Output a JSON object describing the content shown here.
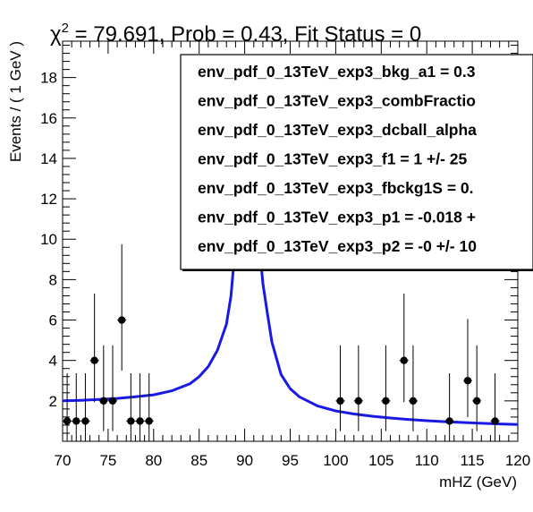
{
  "chart_data": {
    "type": "scatter",
    "title_parts": {
      "chi": "χ",
      "sup": "2",
      "rest": " = 79.691, Prob = 0.43, Fit Status = 0"
    },
    "xlabel": "mHZ (GeV)",
    "ylabel": "Events / ( 1 GeV )",
    "xlim": [
      70,
      120
    ],
    "ylim": [
      0,
      19.8
    ],
    "xticks": [
      "70",
      "75",
      "80",
      "85",
      "90",
      "95",
      "100",
      "105",
      "110",
      "115",
      "120"
    ],
    "xtick_values": [
      70,
      75,
      80,
      85,
      90,
      95,
      100,
      105,
      110,
      115,
      120
    ],
    "yticks": [
      "2",
      "4",
      "6",
      "8",
      "10",
      "12",
      "14",
      "16",
      "18"
    ],
    "ytick_values": [
      2,
      4,
      6,
      8,
      10,
      12,
      14,
      16,
      18
    ],
    "data_points": {
      "x": [
        70.5,
        71.5,
        72.5,
        73.5,
        74.5,
        75.5,
        76.5,
        77.5,
        78.5,
        79.5,
        100.5,
        102.5,
        105.5,
        107.5,
        108.5,
        112.5,
        114.5,
        115.5,
        117.5
      ],
      "y": [
        1,
        1,
        1,
        4,
        2,
        2,
        6,
        1,
        1,
        1,
        2,
        2,
        2,
        4,
        2,
        1,
        3,
        2,
        1
      ]
    },
    "fit_curve": {
      "name": "fit",
      "x": [
        70,
        72,
        74,
        76,
        78,
        80,
        82,
        84,
        85,
        86,
        87,
        88,
        88.5,
        89,
        91.5,
        92,
        92.5,
        93,
        94,
        95,
        96,
        98,
        100,
        102,
        104,
        106,
        108,
        110,
        112,
        114,
        116,
        118,
        120
      ],
      "y": [
        2.0,
        2.03,
        2.07,
        2.12,
        2.2,
        2.3,
        2.5,
        2.85,
        3.2,
        3.7,
        4.5,
        5.8,
        7.2,
        9.8,
        10.2,
        7.8,
        6.3,
        4.9,
        3.3,
        2.6,
        2.2,
        1.75,
        1.5,
        1.35,
        1.24,
        1.15,
        1.08,
        1.02,
        0.97,
        0.93,
        0.89,
        0.86,
        0.83
      ]
    },
    "legend": [
      "env_pdf_0_13TeV_exp3_bkg_a1 =  0.3",
      "env_pdf_0_13TeV_exp3_combFractio",
      "env_pdf_0_13TeV_exp3_dcball_alpha",
      "env_pdf_0_13TeV_exp3_f1 =  1 +/- 25",
      "env_pdf_0_13TeV_exp3_fbckg1S =  0.",
      "env_pdf_0_13TeV_exp3_p1 = -0.018 +",
      "env_pdf_0_13TeV_exp3_p2 = -0 +/- 10"
    ],
    "legend_placement": "top-right",
    "colors": {
      "curve": "#1a1ae6",
      "points": "#000000",
      "frame": "#000000"
    }
  }
}
